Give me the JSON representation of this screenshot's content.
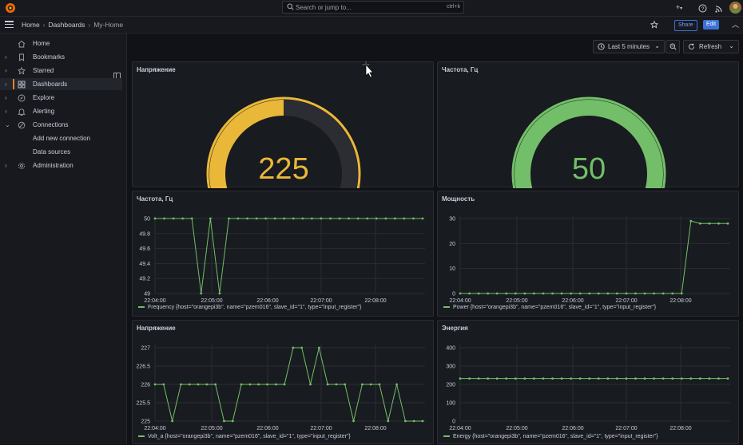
{
  "topbar": {
    "search_placeholder": "Search or jump to...",
    "search_shortcut": "ctrl+k",
    "plus_label": "+",
    "icons": [
      "plus-icon",
      "help-icon",
      "rss-icon",
      "avatar"
    ]
  },
  "breadcrumb": {
    "items": [
      "Home",
      "Dashboards",
      "My-Home"
    ]
  },
  "toolbar": {
    "share_label": "Share",
    "edit_label": "Edit",
    "time_range": "Last 5 minutes",
    "refresh_label": "Refresh"
  },
  "sidebar": {
    "items": [
      {
        "label": "Home",
        "icon": "home-icon",
        "expandable": false
      },
      {
        "label": "Bookmarks",
        "icon": "bookmark-icon",
        "expandable": true
      },
      {
        "label": "Starred",
        "icon": "star-icon",
        "expandable": true
      },
      {
        "label": "Dashboards",
        "icon": "apps-icon",
        "expandable": true,
        "active": true
      },
      {
        "label": "Explore",
        "icon": "compass-icon",
        "expandable": true
      },
      {
        "label": "Alerting",
        "icon": "bell-icon",
        "expandable": true
      },
      {
        "label": "Connections",
        "icon": "connections-icon",
        "expandable": true,
        "expanded": true
      },
      {
        "label": "Add new connection",
        "sub": true
      },
      {
        "label": "Data sources",
        "sub": true
      },
      {
        "label": "Administration",
        "icon": "cog-icon",
        "expandable": true
      }
    ]
  },
  "colors": {
    "green": "#73bf69",
    "yellow": "#eab839",
    "track": "#2c2d33",
    "bg": "#181b1f"
  },
  "panels": {
    "gauge_voltage": {
      "title": "Напряжение",
      "value": "225",
      "fraction": 0.5,
      "color": "#eab839"
    },
    "gauge_freq": {
      "title": "Частота, Гц",
      "value": "50",
      "fraction": 1.0,
      "color": "#73bf69"
    },
    "ts_freq": {
      "title": "Частота, Гц",
      "legend": "Frequency {host=\"orangepi3b\", name=\"pzem016\", slave_id=\"1\", type=\"input_register\"}"
    },
    "ts_power": {
      "title": "Мощность",
      "legend": "Power {host=\"orangepi3b\", name=\"pzem016\", slave_id=\"1\", type=\"input_register\"}"
    },
    "ts_volt": {
      "title": "Напряжение",
      "legend": "Volt_a {host=\"orangepi3b\", name=\"pzem016\", slave_id=\"1\", type=\"input_register\"}"
    },
    "ts_energy": {
      "title": "Энергия",
      "legend": "Energy {host=\"orangepi3b\", name=\"pzem016\", slave_id=\"1\", type=\"input_register\"}"
    }
  },
  "chart_data": [
    {
      "type": "line",
      "panel": "ts_freq",
      "xlabels": [
        "22:04:00",
        "22:05:00",
        "22:06:00",
        "22:07:00",
        "22:08:00"
      ],
      "yticks": [
        "50",
        "49.8",
        "49.6",
        "49.4",
        "49.2",
        "49"
      ],
      "ylim": [
        49,
        50
      ],
      "values": [
        50,
        50,
        50,
        50,
        50,
        49,
        50,
        49,
        50,
        50,
        50,
        50,
        50,
        50,
        50,
        50,
        50,
        50,
        50,
        50,
        50,
        50,
        50,
        50,
        50,
        50,
        50,
        50,
        50,
        50
      ]
    },
    {
      "type": "line",
      "panel": "ts_power",
      "xlabels": [
        "22:04:00",
        "22:05:00",
        "22:06:00",
        "22:07:00",
        "22:08:00"
      ],
      "yticks": [
        "30",
        "20",
        "10",
        "0"
      ],
      "ylim": [
        0,
        30
      ],
      "values": [
        0,
        0,
        0,
        0,
        0,
        0,
        0,
        0,
        0,
        0,
        0,
        0,
        0,
        0,
        0,
        0,
        0,
        0,
        0,
        0,
        0,
        0,
        0,
        0,
        0,
        29,
        28,
        28,
        28,
        28
      ]
    },
    {
      "type": "line",
      "panel": "ts_volt",
      "xlabels": [
        "22:04:00",
        "22:05:00",
        "22:06:00",
        "22:07:00",
        "22:08:00"
      ],
      "yticks": [
        "227",
        "226.5",
        "226",
        "225.5",
        "225"
      ],
      "ylim": [
        225,
        227
      ],
      "values": [
        226,
        226,
        225,
        226,
        226,
        226,
        226,
        226,
        225,
        225,
        226,
        226,
        226,
        226,
        226,
        226,
        227,
        227,
        226,
        227,
        226,
        226,
        226,
        225,
        226,
        226,
        226,
        225,
        226,
        225,
        225,
        225
      ]
    },
    {
      "type": "line",
      "panel": "ts_energy",
      "xlabels": [
        "22:04:00",
        "22:05:00",
        "22:06:00",
        "22:07:00",
        "22:08:00"
      ],
      "yticks": [
        "400",
        "300",
        "200",
        "100",
        "0"
      ],
      "ylim": [
        0,
        400
      ],
      "values": [
        232,
        232,
        232,
        232,
        232,
        232,
        232,
        232,
        232,
        232,
        232,
        232,
        232,
        232,
        232,
        232,
        232,
        232,
        232,
        232,
        232,
        232,
        232,
        232,
        232,
        232,
        232,
        232,
        232,
        232
      ]
    }
  ]
}
